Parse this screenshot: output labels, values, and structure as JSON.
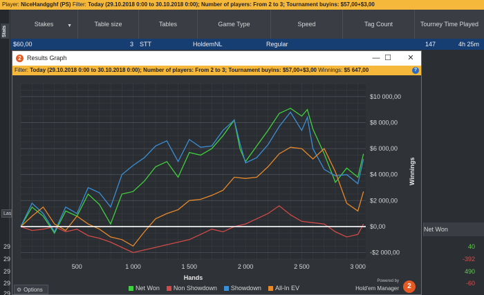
{
  "top_filter": {
    "player_label": "Player:",
    "player_value": "NiceHandgghf (PS)",
    "filter_label": "Filter:",
    "filter_value": "Today (29.10.2018 0:00 to 30.10.2018 0:00); Number of players: From 2 to 3; Tournament buyins: $57,00+$3,00"
  },
  "sidebar": {
    "stats_tab": "Stats"
  },
  "table": {
    "headers": [
      "Stakes",
      "Table size",
      "Tables",
      "Game Type",
      "Speed",
      "Tag Count",
      "Tourney Time Played"
    ],
    "selected_row": {
      "stakes": "$60,00",
      "table_size": "3",
      "tables": "STT",
      "game_type": "HoldemNL",
      "speed": "Regular",
      "tag_count": "147",
      "time_played": "4h 25m"
    },
    "right_column_header": "Net Won",
    "right_values": [
      {
        "v": "40",
        "color": "#5fd14a"
      },
      {
        "v": "-392",
        "color": "#e64a4a"
      },
      {
        "v": "490",
        "color": "#5fd14a"
      },
      {
        "v": "-60",
        "color": "#e64a4a"
      }
    ],
    "left_numbers": [
      "29",
      "29",
      "29",
      "29",
      "29"
    ],
    "last_btn": "Las"
  },
  "window": {
    "title": "Results Graph",
    "minimize": "—",
    "maximize": "☐",
    "close": "✕",
    "filter_label": "Filter:",
    "filter_value": "Today (29.10.2018 0:00 to 30.10.2018 0:00); Number of players: From 2 to 3; Tournament buyins: $57,00+$3,00",
    "winnings_label": "Winnings:",
    "winnings_value": "$5 647,00",
    "help": "?"
  },
  "options_label": "Options",
  "brand": {
    "powered_by": "Powered by",
    "name": "Hold'em Manager",
    "badge": "2"
  },
  "colors": {
    "net_won": "#3fd13f",
    "non_showdown": "#d44a4a",
    "showdown": "#3a8fd6",
    "all_in_ev": "#e88a2a",
    "accent": "#f6b83a"
  },
  "chart_data": {
    "type": "line",
    "xlabel": "Hands",
    "ylabel": "Winnings",
    "xlim": [
      0,
      3070
    ],
    "ylim": [
      -2500,
      11000
    ],
    "x_ticks": [
      500,
      1000,
      1500,
      2000,
      2500,
      3000
    ],
    "x_tick_labels": [
      "500",
      "1 000",
      "1 500",
      "2 000",
      "2 500",
      "3 000"
    ],
    "y_ticks": [
      -2000,
      0,
      2000,
      4000,
      6000,
      8000,
      10000
    ],
    "y_tick_labels": [
      "-$2 000,00",
      "$0,00",
      "$2 000,00",
      "$4 000,00",
      "$6 000,00",
      "$8 000,00",
      "$10 000,00"
    ],
    "legend_position": "bottom",
    "series": [
      {
        "name": "Net Won",
        "color": "#3fd13f",
        "x": [
          0,
          100,
          200,
          300,
          400,
          500,
          600,
          700,
          800,
          900,
          1000,
          1100,
          1200,
          1300,
          1400,
          1500,
          1600,
          1700,
          1800,
          1900,
          1950,
          2000,
          2100,
          2200,
          2300,
          2400,
          2500,
          2550,
          2600,
          2700,
          2800,
          2900,
          3000,
          3050
        ],
        "y": [
          0,
          1500,
          800,
          -500,
          1200,
          800,
          2500,
          1700,
          200,
          2500,
          2700,
          3500,
          4600,
          5000,
          3800,
          5700,
          5500,
          6000,
          7000,
          8200,
          6000,
          5000,
          6200,
          7400,
          8700,
          9100,
          8500,
          9000,
          7500,
          5600,
          3400,
          4500,
          3800,
          5600
        ]
      },
      {
        "name": "Non Showdown",
        "color": "#d44a4a",
        "x": [
          0,
          100,
          200,
          300,
          400,
          500,
          600,
          700,
          800,
          900,
          1000,
          1100,
          1200,
          1300,
          1400,
          1500,
          1600,
          1700,
          1800,
          1900,
          2000,
          2100,
          2200,
          2300,
          2400,
          2500,
          2600,
          2700,
          2800,
          2900,
          3000,
          3050
        ],
        "y": [
          0,
          -300,
          -200,
          0,
          -400,
          -200,
          -700,
          -900,
          -1200,
          -1600,
          -2000,
          -1800,
          -1600,
          -1400,
          -1200,
          -1000,
          -600,
          -200,
          -400,
          0,
          200,
          600,
          1000,
          1600,
          900,
          400,
          300,
          200,
          -400,
          -800,
          -600,
          200
        ]
      },
      {
        "name": "Showdown",
        "color": "#3a8fd6",
        "x": [
          0,
          100,
          200,
          300,
          400,
          500,
          600,
          700,
          800,
          900,
          1000,
          1100,
          1200,
          1300,
          1400,
          1500,
          1600,
          1700,
          1800,
          1900,
          1950,
          2000,
          2100,
          2200,
          2300,
          2400,
          2500,
          2550,
          2600,
          2700,
          2800,
          2900,
          3000,
          3050
        ],
        "y": [
          0,
          1800,
          1000,
          -400,
          1500,
          1000,
          3000,
          2600,
          1500,
          4000,
          4700,
          5300,
          6200,
          6600,
          5000,
          6700,
          6100,
          6200,
          7400,
          8200,
          6400,
          4900,
          5300,
          6300,
          7700,
          8800,
          7400,
          8400,
          6000,
          4400,
          3900,
          4000,
          3300,
          5200
        ]
      },
      {
        "name": "All-In EV",
        "color": "#e88a2a",
        "x": [
          0,
          100,
          200,
          300,
          400,
          500,
          600,
          700,
          800,
          900,
          1000,
          1100,
          1200,
          1300,
          1400,
          1500,
          1600,
          1700,
          1800,
          1900,
          2000,
          2100,
          2200,
          2300,
          2400,
          2500,
          2600,
          2700,
          2800,
          2900,
          3000,
          3050
        ],
        "y": [
          0,
          800,
          1500,
          200,
          -300,
          800,
          200,
          -200,
          -800,
          -1000,
          -1500,
          -400,
          600,
          1000,
          1300,
          2000,
          2100,
          2400,
          2800,
          3800,
          3700,
          3800,
          4600,
          5600,
          6100,
          6000,
          5200,
          6000,
          4200,
          1800,
          1200,
          2700
        ]
      }
    ]
  }
}
